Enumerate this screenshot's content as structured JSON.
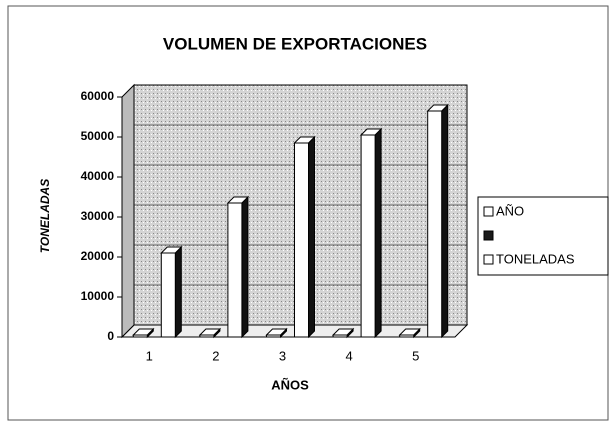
{
  "chart_data": {
    "type": "bar3d",
    "title": "VOLUMEN DE EXPORTACIONES",
    "xlabel": "AÑOS",
    "ylabel": "TONELADAS",
    "categories": [
      "1",
      "2",
      "3",
      "4",
      "5"
    ],
    "series": [
      {
        "name": "AÑO",
        "color": "#ffffff",
        "values": [
          1,
          2,
          3,
          4,
          5
        ]
      },
      {
        "name": null,
        "color": "#1a1a1a",
        "values": [
          null,
          null,
          null,
          null,
          null
        ]
      },
      {
        "name": "TONELADAS",
        "color": "#ffffff",
        "values": [
          21000,
          33500,
          48500,
          50500,
          56500
        ]
      }
    ],
    "ylim": [
      0,
      60000
    ],
    "yticks": [
      0,
      10000,
      20000,
      30000,
      40000,
      50000,
      60000
    ],
    "grid": true,
    "legend": "right"
  }
}
